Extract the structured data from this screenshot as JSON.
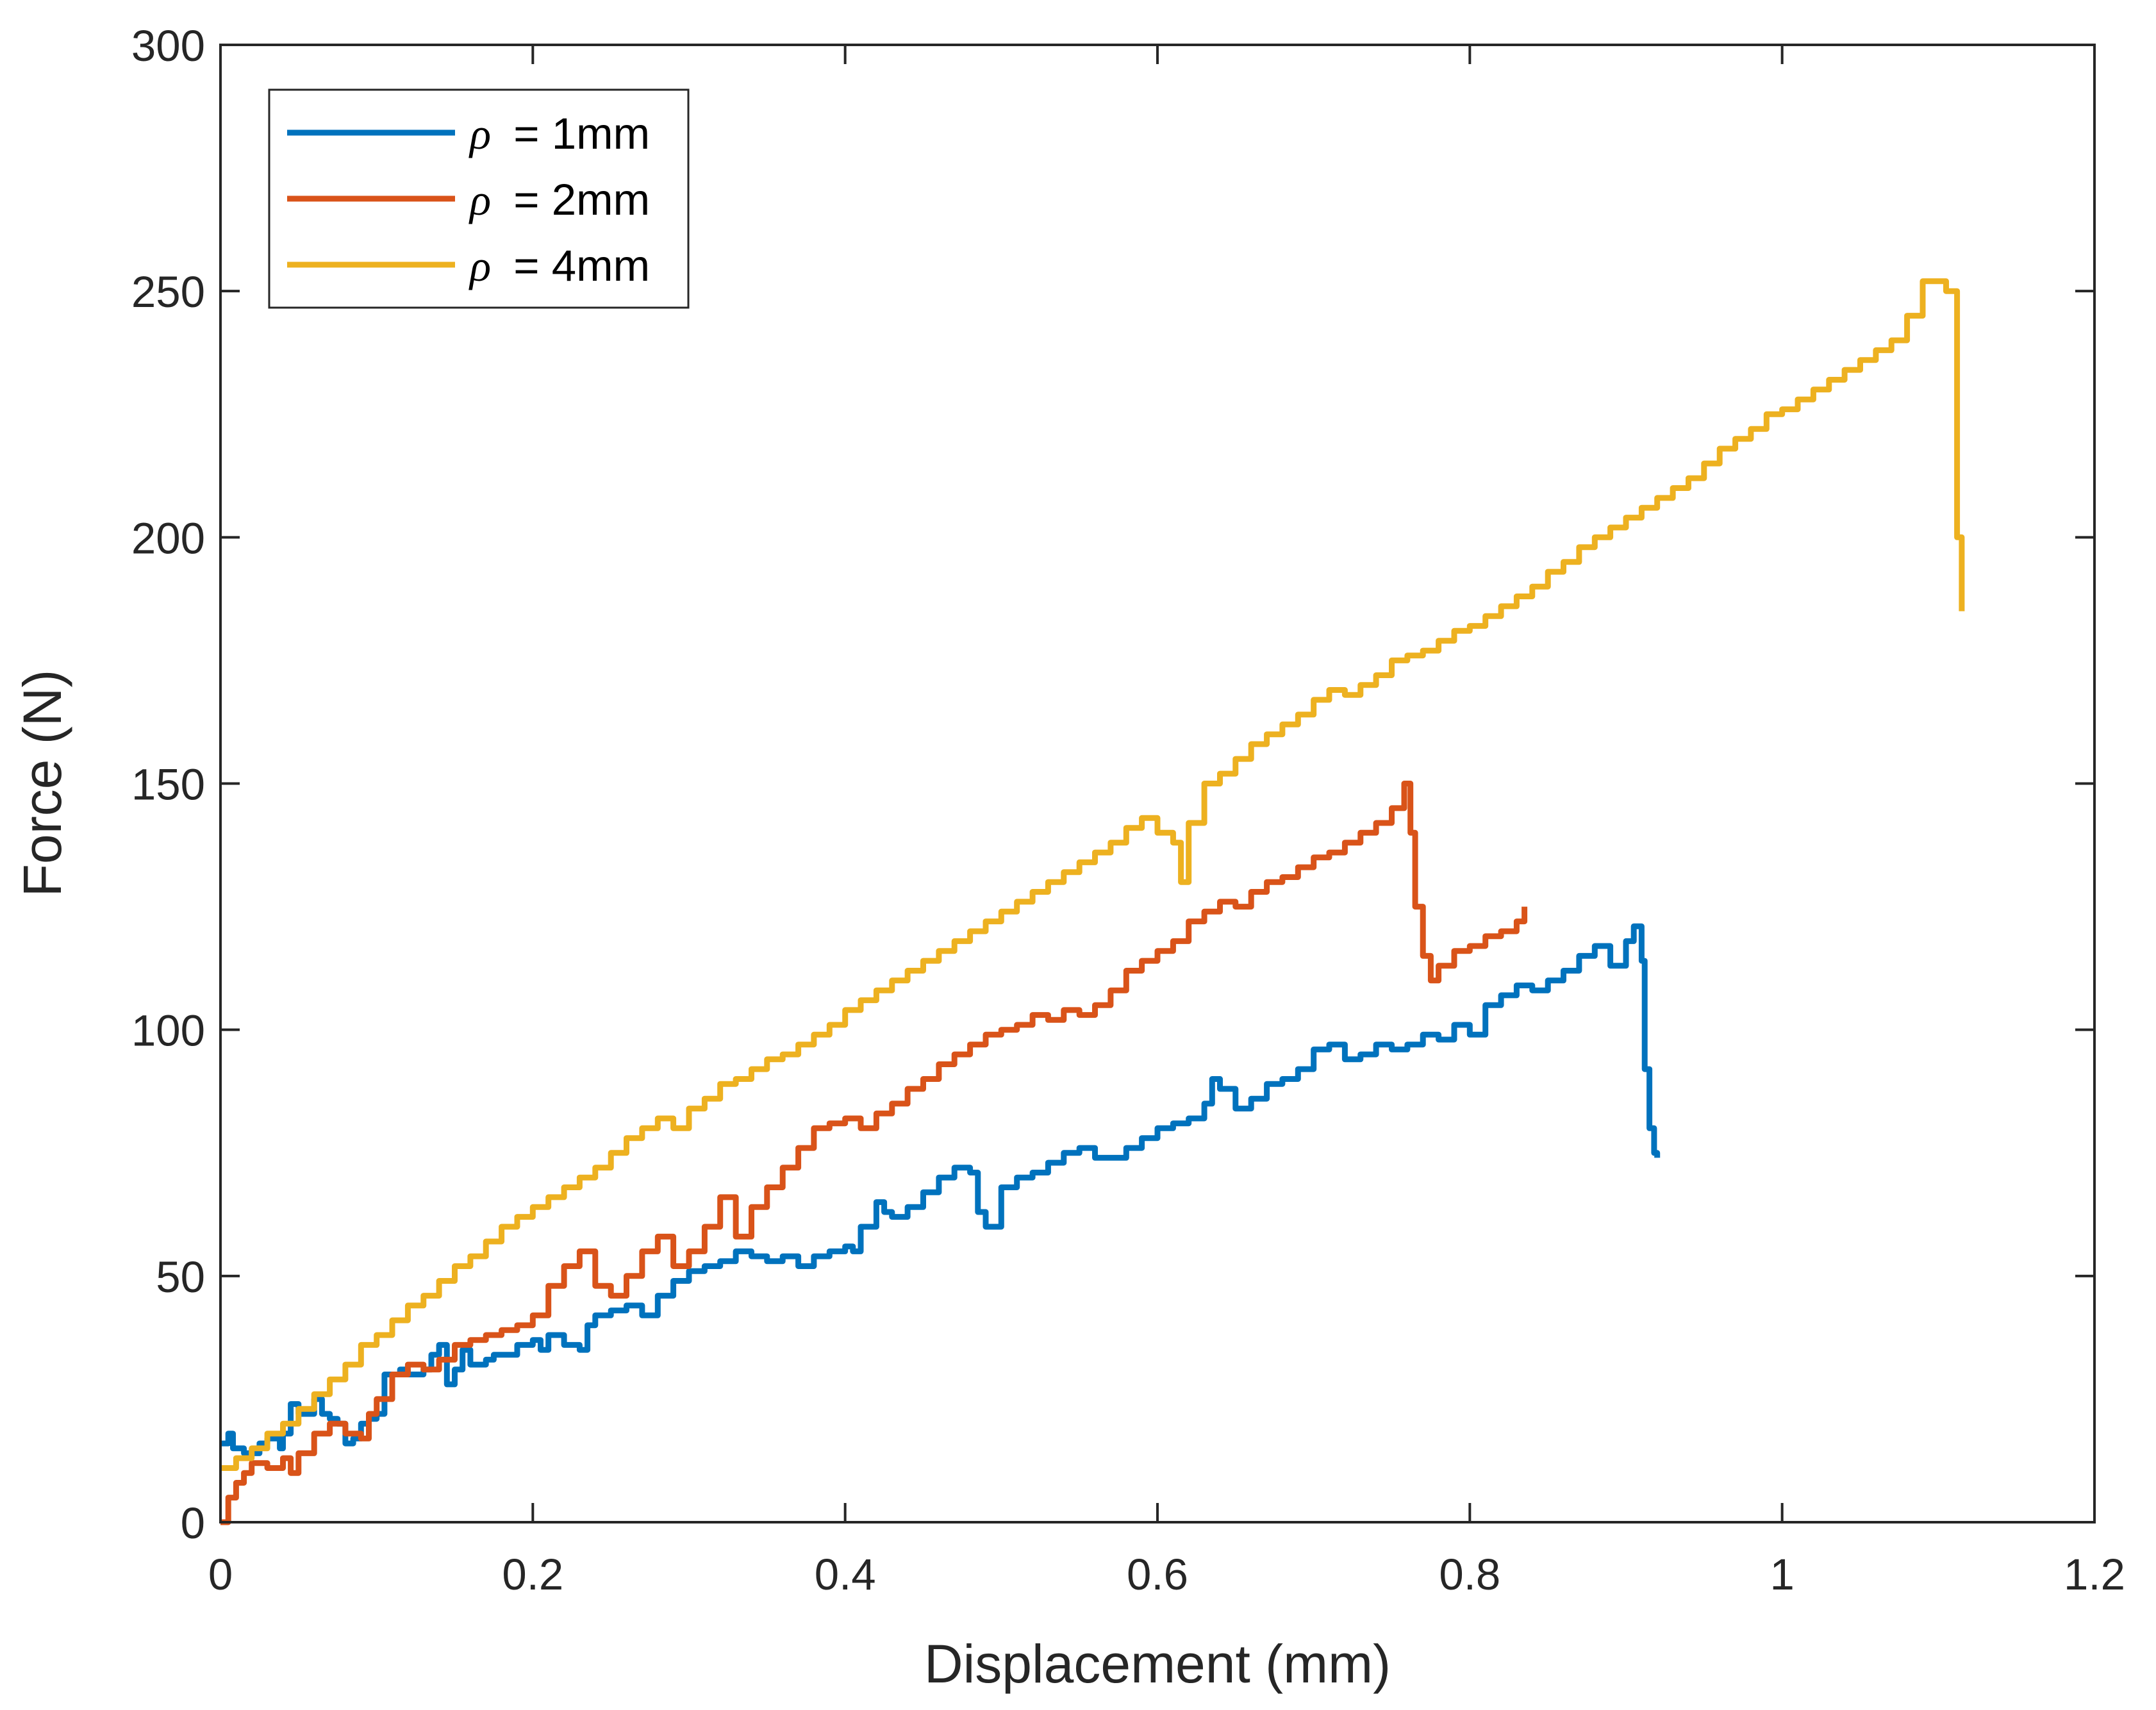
{
  "chart_data": {
    "type": "line",
    "title": "",
    "xlabel": "Displacement (mm)",
    "ylabel": "Force (N)",
    "xlim": [
      0,
      1.2
    ],
    "ylim": [
      0,
      300
    ],
    "xticks": [
      0,
      0.2,
      0.4,
      0.6,
      0.8,
      1,
      1.2
    ],
    "xtick_labels": [
      "0",
      "0.2",
      "0.4",
      "0.6",
      "0.8",
      "1",
      "1.2"
    ],
    "yticks": [
      0,
      50,
      100,
      150,
      200,
      250,
      300
    ],
    "ytick_labels": [
      "0",
      "50",
      "100",
      "150",
      "200",
      "250",
      "300"
    ],
    "grid": false,
    "legend_position": "top-left",
    "series": [
      {
        "name": "ρ = 1mm",
        "legend_symbol": "ρ",
        "legend_text": "= 1mm",
        "color": "#0072BD",
        "x": [
          0,
          0.005,
          0.008,
          0.015,
          0.025,
          0.03,
          0.038,
          0.04,
          0.045,
          0.05,
          0.055,
          0.06,
          0.065,
          0.07,
          0.075,
          0.08,
          0.085,
          0.09,
          0.095,
          0.1,
          0.105,
          0.11,
          0.115,
          0.12,
          0.13,
          0.135,
          0.14,
          0.145,
          0.15,
          0.155,
          0.16,
          0.17,
          0.175,
          0.18,
          0.19,
          0.2,
          0.205,
          0.21,
          0.22,
          0.23,
          0.235,
          0.24,
          0.25,
          0.26,
          0.27,
          0.28,
          0.29,
          0.3,
          0.31,
          0.32,
          0.33,
          0.34,
          0.35,
          0.36,
          0.37,
          0.38,
          0.39,
          0.4,
          0.405,
          0.41,
          0.42,
          0.425,
          0.43,
          0.44,
          0.45,
          0.46,
          0.47,
          0.48,
          0.485,
          0.49,
          0.5,
          0.51,
          0.52,
          0.53,
          0.54,
          0.55,
          0.56,
          0.57,
          0.58,
          0.59,
          0.6,
          0.61,
          0.62,
          0.63,
          0.635,
          0.64,
          0.65,
          0.66,
          0.67,
          0.68,
          0.69,
          0.7,
          0.71,
          0.72,
          0.73,
          0.74,
          0.75,
          0.76,
          0.77,
          0.78,
          0.79,
          0.8,
          0.81,
          0.82,
          0.83,
          0.84,
          0.85,
          0.86,
          0.87,
          0.88,
          0.89,
          0.9,
          0.905,
          0.91,
          0.912,
          0.915,
          0.918,
          0.92
        ],
        "y": [
          16,
          18,
          15,
          14,
          16,
          17,
          15,
          18,
          24,
          22,
          22,
          25,
          22,
          21,
          20,
          16,
          17,
          20,
          21,
          22,
          30,
          30,
          31,
          30,
          31,
          34,
          36,
          28,
          31,
          35,
          32,
          33,
          34,
          34,
          36,
          37,
          35,
          38,
          36,
          35,
          40,
          42,
          43,
          44,
          42,
          46,
          49,
          51,
          52,
          53,
          55,
          54,
          53,
          54,
          52,
          54,
          55,
          56,
          55,
          60,
          65,
          63,
          62,
          64,
          67,
          70,
          72,
          71,
          63,
          60,
          68,
          70,
          71,
          73,
          75,
          76,
          74,
          74,
          76,
          78,
          80,
          81,
          82,
          85,
          90,
          88,
          84,
          86,
          89,
          90,
          92,
          96,
          97,
          94,
          95,
          97,
          96,
          97,
          99,
          98,
          101,
          99,
          105,
          107,
          109,
          108,
          110,
          112,
          115,
          117,
          113,
          118,
          121,
          114,
          92,
          80,
          75,
          74
        ]
      },
      {
        "name": "ρ = 2mm",
        "legend_symbol": "ρ",
        "legend_text": "= 2mm",
        "color": "#D95319",
        "x": [
          0,
          0.005,
          0.01,
          0.015,
          0.02,
          0.03,
          0.04,
          0.045,
          0.05,
          0.06,
          0.07,
          0.08,
          0.09,
          0.095,
          0.1,
          0.11,
          0.12,
          0.13,
          0.14,
          0.15,
          0.16,
          0.17,
          0.18,
          0.19,
          0.2,
          0.21,
          0.22,
          0.23,
          0.24,
          0.25,
          0.26,
          0.27,
          0.28,
          0.29,
          0.3,
          0.31,
          0.32,
          0.33,
          0.34,
          0.35,
          0.36,
          0.37,
          0.38,
          0.39,
          0.4,
          0.41,
          0.42,
          0.43,
          0.44,
          0.45,
          0.46,
          0.47,
          0.48,
          0.49,
          0.5,
          0.51,
          0.52,
          0.53,
          0.54,
          0.55,
          0.56,
          0.57,
          0.58,
          0.59,
          0.6,
          0.61,
          0.62,
          0.63,
          0.64,
          0.65,
          0.66,
          0.67,
          0.68,
          0.69,
          0.7,
          0.71,
          0.72,
          0.73,
          0.74,
          0.75,
          0.758,
          0.762,
          0.765,
          0.77,
          0.775,
          0.78,
          0.79,
          0.8,
          0.81,
          0.82,
          0.83,
          0.835
        ],
        "y": [
          0,
          5,
          8,
          10,
          12,
          11,
          13,
          10,
          14,
          18,
          20,
          18,
          17,
          22,
          25,
          30,
          32,
          31,
          33,
          36,
          37,
          38,
          39,
          40,
          42,
          48,
          52,
          55,
          48,
          46,
          50,
          55,
          58,
          52,
          55,
          60,
          66,
          58,
          64,
          68,
          72,
          76,
          80,
          81,
          82,
          80,
          83,
          85,
          88,
          90,
          93,
          95,
          97,
          99,
          100,
          101,
          103,
          102,
          104,
          103,
          105,
          108,
          112,
          114,
          116,
          118,
          122,
          124,
          126,
          125,
          128,
          130,
          131,
          133,
          135,
          136,
          138,
          140,
          142,
          145,
          150,
          140,
          125,
          115,
          110,
          113,
          116,
          117,
          119,
          120,
          122,
          125
        ]
      },
      {
        "name": "ρ = 4mm",
        "legend_symbol": "ρ",
        "legend_text": "= 4mm",
        "color": "#EDB120",
        "x": [
          0,
          0.01,
          0.02,
          0.03,
          0.04,
          0.05,
          0.06,
          0.07,
          0.08,
          0.09,
          0.1,
          0.11,
          0.12,
          0.13,
          0.14,
          0.15,
          0.16,
          0.17,
          0.18,
          0.19,
          0.2,
          0.21,
          0.22,
          0.23,
          0.24,
          0.25,
          0.26,
          0.27,
          0.28,
          0.29,
          0.3,
          0.31,
          0.32,
          0.33,
          0.34,
          0.35,
          0.36,
          0.37,
          0.38,
          0.39,
          0.4,
          0.41,
          0.42,
          0.43,
          0.44,
          0.45,
          0.46,
          0.47,
          0.48,
          0.49,
          0.5,
          0.51,
          0.52,
          0.53,
          0.54,
          0.55,
          0.56,
          0.57,
          0.58,
          0.59,
          0.6,
          0.61,
          0.615,
          0.62,
          0.63,
          0.64,
          0.65,
          0.66,
          0.67,
          0.68,
          0.69,
          0.7,
          0.71,
          0.72,
          0.73,
          0.74,
          0.75,
          0.76,
          0.77,
          0.78,
          0.79,
          0.8,
          0.81,
          0.82,
          0.83,
          0.84,
          0.85,
          0.86,
          0.87,
          0.88,
          0.89,
          0.9,
          0.91,
          0.92,
          0.93,
          0.94,
          0.95,
          0.96,
          0.97,
          0.98,
          0.99,
          1,
          1.01,
          1.02,
          1.03,
          1.04,
          1.05,
          1.06,
          1.07,
          1.08,
          1.09,
          1.1,
          1.105,
          1.11,
          1.112,
          1.115
        ],
        "y": [
          11,
          13,
          15,
          18,
          20,
          23,
          26,
          29,
          32,
          36,
          38,
          41,
          44,
          46,
          49,
          52,
          54,
          57,
          60,
          62,
          64,
          66,
          68,
          70,
          72,
          75,
          78,
          80,
          82,
          80,
          84,
          86,
          89,
          90,
          92,
          94,
          95,
          97,
          99,
          101,
          104,
          106,
          108,
          110,
          112,
          114,
          116,
          118,
          120,
          122,
          124,
          126,
          128,
          130,
          132,
          134,
          136,
          138,
          141,
          143,
          140,
          138,
          130,
          142,
          150,
          152,
          155,
          158,
          160,
          162,
          164,
          167,
          169,
          168,
          170,
          172,
          175,
          176,
          177,
          179,
          181,
          182,
          184,
          186,
          188,
          190,
          193,
          195,
          198,
          200,
          202,
          204,
          206,
          208,
          210,
          212,
          215,
          218,
          220,
          222,
          225,
          226,
          228,
          230,
          232,
          234,
          236,
          238,
          240,
          245,
          252,
          252,
          250,
          250,
          200,
          185
        ]
      }
    ]
  }
}
